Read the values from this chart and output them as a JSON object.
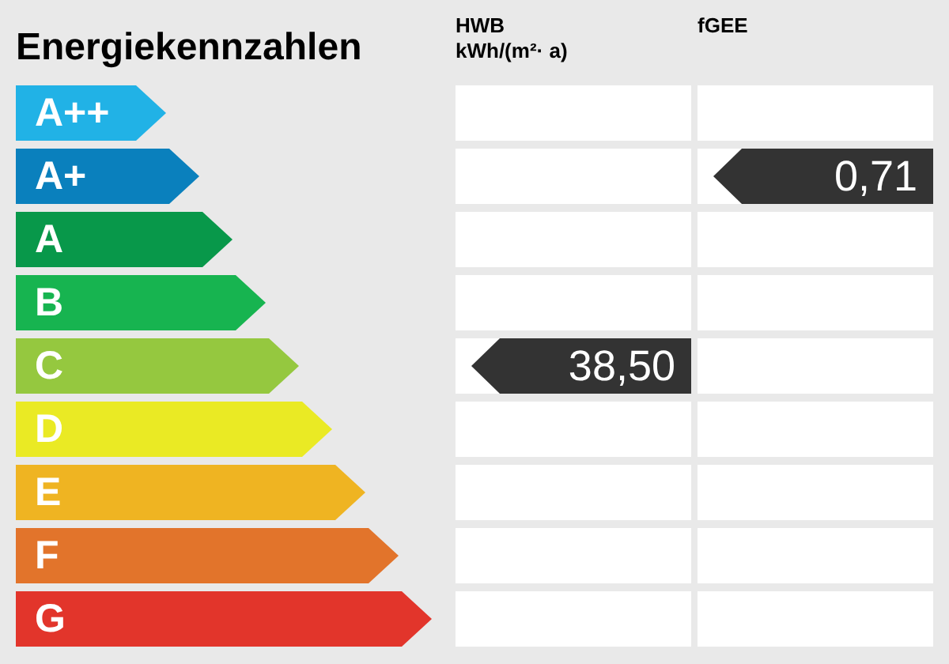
{
  "chart_data": {
    "type": "other",
    "title": "Energiekennzahlen",
    "categories": [
      "A++",
      "A+",
      "A",
      "B",
      "C",
      "D",
      "E",
      "F",
      "G"
    ],
    "colors": [
      "#21b2e6",
      "#0a80bd",
      "#08984a",
      "#17b450",
      "#95c83f",
      "#eaea24",
      "#efb422",
      "#e2742b",
      "#e2352b"
    ],
    "annotations": [
      "HWB\nkWh/(m²· a)",
      "fGEE"
    ],
    "series": [
      {
        "color": "#333333",
        "values": [
          null,
          null,
          null,
          null,
          38.5,
          null,
          null,
          null,
          null
        ],
        "value_labels": [
          null,
          null,
          null,
          null,
          "38,50",
          null,
          null,
          null,
          null
        ]
      },
      {
        "color": "#333333",
        "values": [
          null,
          0.71,
          null,
          null,
          null,
          null,
          null,
          null,
          null
        ],
        "value_labels": [
          null,
          "0,71",
          null,
          null,
          null,
          null,
          null,
          null,
          null
        ]
      }
    ]
  }
}
